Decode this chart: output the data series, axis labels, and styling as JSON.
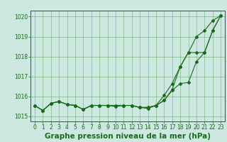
{
  "title": "Graphe pression niveau de la mer (hPa)",
  "x": [
    0,
    1,
    2,
    3,
    4,
    5,
    6,
    7,
    8,
    9,
    10,
    11,
    12,
    13,
    14,
    15,
    16,
    17,
    18,
    19,
    20,
    21,
    22,
    23
  ],
  "line1": [
    1015.55,
    1015.3,
    1015.65,
    1015.75,
    1015.6,
    1015.55,
    1015.35,
    1015.55,
    1015.55,
    1015.55,
    1015.55,
    1015.55,
    1015.55,
    1015.45,
    1015.45,
    1015.55,
    1015.8,
    1016.35,
    1017.5,
    1018.2,
    1019.0,
    1019.3,
    1019.8,
    1020.05
  ],
  "line2": [
    1015.55,
    1015.3,
    1015.65,
    1015.75,
    1015.6,
    1015.55,
    1015.35,
    1015.55,
    1015.55,
    1015.55,
    1015.55,
    1015.55,
    1015.55,
    1015.45,
    1015.45,
    1015.55,
    1016.05,
    1016.65,
    1017.5,
    1018.2,
    1018.2,
    1018.2,
    1019.3,
    1020.05
  ],
  "line3": [
    1015.55,
    1015.3,
    1015.65,
    1015.75,
    1015.6,
    1015.55,
    1015.35,
    1015.55,
    1015.55,
    1015.55,
    1015.5,
    1015.55,
    1015.55,
    1015.45,
    1015.4,
    1015.55,
    1015.8,
    1016.3,
    1016.65,
    1016.7,
    1017.75,
    1018.2,
    1019.3,
    1020.05
  ],
  "ylim": [
    1014.75,
    1020.3
  ],
  "yticks": [
    1015,
    1016,
    1017,
    1018,
    1019,
    1020
  ],
  "xticks": [
    0,
    1,
    2,
    3,
    4,
    5,
    6,
    7,
    8,
    9,
    10,
    11,
    12,
    13,
    14,
    15,
    16,
    17,
    18,
    19,
    20,
    21,
    22,
    23
  ],
  "line_color": "#1a6b1a",
  "bg_color": "#cce8e0",
  "grid_color": "#5ba05b",
  "marker": "D",
  "marker_size": 2.0,
  "linewidth": 0.8,
  "title_fontsize": 7.5,
  "tick_fontsize": 5.5
}
